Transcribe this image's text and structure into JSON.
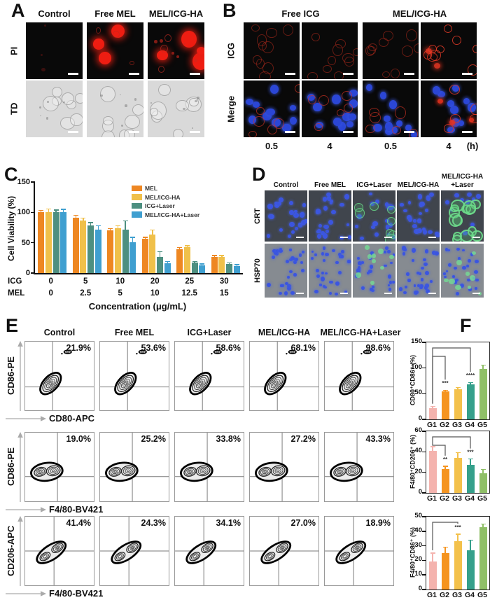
{
  "palette": {
    "pi_red": "#ee1d12",
    "nuclei_blue": "#3b55e0",
    "stain_green": "#6fd38c",
    "scale_bar": "#ffffff",
    "f_bar_colors": [
      "#f4b3ae",
      "#f5941f",
      "#f3c14b",
      "#35a08b",
      "#8fbf67"
    ]
  },
  "figure": {
    "panels": {
      "A": {
        "label": "A",
        "col_headers": [
          "Control",
          "Free MEL",
          "MEL/ICG-HA"
        ],
        "row_labels": [
          "PI",
          "TD"
        ]
      },
      "B": {
        "label": "B",
        "group_headers": [
          "Free ICG",
          "MEL/ICG-HA"
        ],
        "row_labels": [
          "ICG",
          "Merge"
        ],
        "time_labels": [
          "0.5",
          "4",
          "0.5",
          "4"
        ],
        "time_unit": "(h)"
      },
      "C": {
        "label": "C"
      },
      "D": {
        "label": "D",
        "col_headers": [
          "Control",
          "Free MEL",
          "ICG+Laser",
          "MEL/ICG-HA",
          "MEL/ICG-HA\n+Laser"
        ],
        "row_labels": [
          "CRT",
          "HSP70"
        ]
      },
      "E": {
        "label": "E",
        "col_headers": [
          "Control",
          "Free MEL",
          "ICG+Laser",
          "MEL/ICG-HA",
          "MEL/ICG-HA+Laser"
        ],
        "rows": [
          {
            "ylabel": "CD86-PE",
            "xlabel": "CD80-APC",
            "percentages": [
              "21.9%",
              "53.6%",
              "58.6%",
              "68.1%",
              "98.6%"
            ]
          },
          {
            "ylabel": "CD86-PE",
            "xlabel": "F4/80-BV421",
            "percentages": [
              "19.0%",
              "25.2%",
              "33.8%",
              "27.2%",
              "43.3%"
            ]
          },
          {
            "ylabel": "CD206-APC",
            "xlabel": "F4/80-BV421",
            "percentages": [
              "41.4%",
              "24.3%",
              "34.1%",
              "27.0%",
              "18.9%"
            ]
          }
        ]
      },
      "F": {
        "label": "F"
      }
    }
  },
  "chart_data": [
    {
      "id": "chartC",
      "type": "bar",
      "panel": "C",
      "title": "",
      "ylabel": "Cell Viability (%)",
      "xlabel": "Concentration (μg/mL)",
      "ylim": [
        0,
        150
      ],
      "yticks": [
        0,
        50,
        100,
        150
      ],
      "grid": false,
      "legend_position": "top-right",
      "x_rows": [
        {
          "label": "ICG",
          "values": [
            "0",
            "5",
            "10",
            "20",
            "25",
            "30"
          ]
        },
        {
          "label": "MEL",
          "values": [
            "0",
            "2.5",
            "5",
            "10",
            "12.5",
            "15"
          ]
        }
      ],
      "series": [
        {
          "name": "MEL",
          "color": "#ee8722",
          "values": [
            100,
            91,
            70,
            56,
            39,
            27
          ],
          "errors": [
            3,
            4,
            3,
            3,
            3,
            2
          ]
        },
        {
          "name": "MEL/ICG-HA",
          "color": "#f0c04a",
          "values": [
            100,
            87,
            74,
            63,
            43,
            27
          ],
          "errors": [
            6,
            4,
            4,
            8,
            2,
            2
          ]
        },
        {
          "name": "ICG+Laser",
          "color": "#4d8f80",
          "values": [
            100,
            78,
            71,
            27,
            17,
            15
          ],
          "errors": [
            4,
            5,
            15,
            8,
            2,
            2
          ]
        },
        {
          "name": "MEL/ICG-HA+Laser",
          "color": "#3f9fd0",
          "values": [
            100,
            71,
            51,
            16,
            13,
            12
          ],
          "errors": [
            5,
            7,
            8,
            3,
            2,
            2
          ]
        }
      ]
    },
    {
      "id": "chartF1",
      "type": "bar",
      "panel": "F",
      "ylabel": "CD80⁺CD86⁺ (%)",
      "ylim": [
        0,
        150
      ],
      "yticks": [
        0,
        50,
        100,
        150
      ],
      "categories": [
        "G1",
        "G2",
        "G3",
        "G4",
        "G5"
      ],
      "values": [
        22,
        54,
        58,
        68,
        98
      ],
      "errors": [
        3,
        3,
        4,
        4,
        8
      ],
      "colors": [
        "#f4b3ae",
        "#f5941f",
        "#f3c14b",
        "#35a08b",
        "#8fbf67"
      ],
      "annotations": [
        {
          "from": 0,
          "to": 1,
          "label": "***",
          "level": 1
        },
        {
          "from": 0,
          "to": 3,
          "label": "****",
          "level": 2
        }
      ]
    },
    {
      "id": "chartF2",
      "type": "bar",
      "panel": "F",
      "ylabel": "F4/80⁺CD206⁺ (%)",
      "ylim": [
        0,
        60
      ],
      "yticks": [
        0,
        20,
        40,
        60
      ],
      "categories": [
        "G1",
        "G2",
        "G3",
        "G4",
        "G5"
      ],
      "values": [
        41,
        23,
        34,
        27,
        19
      ],
      "errors": [
        4,
        3,
        5,
        6,
        4
      ],
      "colors": [
        "#f4b3ae",
        "#f5941f",
        "#f3c14b",
        "#35a08b",
        "#8fbf67"
      ],
      "annotations": [
        {
          "from": 0,
          "to": 1,
          "label": "**",
          "level": 1
        },
        {
          "from": 0,
          "to": 3,
          "label": "***",
          "level": 2
        }
      ]
    },
    {
      "id": "chartF3",
      "type": "bar",
      "panel": "F",
      "ylabel": "F4/80⁺CD86⁺ (%)",
      "ylim": [
        0,
        50
      ],
      "yticks": [
        0,
        10,
        20,
        30,
        40,
        50
      ],
      "categories": [
        "G1",
        "G2",
        "G3",
        "G4",
        "G5"
      ],
      "values": [
        19,
        25,
        33,
        27,
        43
      ],
      "errors": [
        6,
        4,
        5,
        7,
        2
      ],
      "colors": [
        "#f4b3ae",
        "#f5941f",
        "#f3c14b",
        "#35a08b",
        "#8fbf67"
      ],
      "annotations": [
        {
          "from": 0,
          "to": 2,
          "label": "***",
          "level": 2
        }
      ]
    }
  ]
}
